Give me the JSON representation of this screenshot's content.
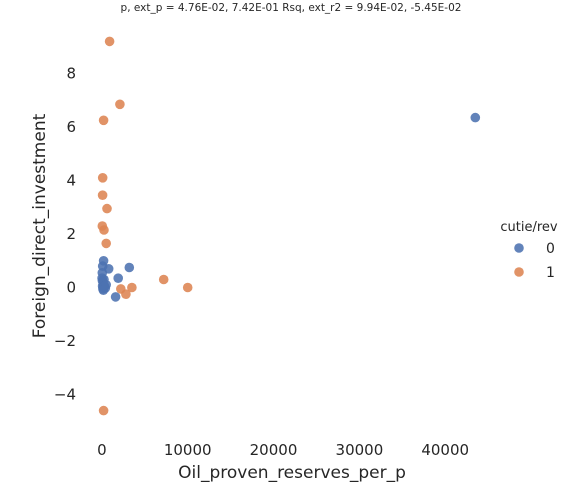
{
  "chart_data": {
    "type": "scatter",
    "title": "p, ext_p = 4.76E-02, 7.42E-01 Rsq, ext_r2 = 9.94E-02, -5.45E-02",
    "xlabel": "Oil_proven_reserves_per_p",
    "ylabel": "Foreign_direct_investment",
    "xlim": [
      -2200,
      46500
    ],
    "ylim": [
      -5.4,
      9.7
    ],
    "x_ticks": [
      0,
      10000,
      20000,
      30000,
      40000
    ],
    "x_tick_labels": [
      "0",
      "10000",
      "20000",
      "30000",
      "40000"
    ],
    "y_ticks": [
      -4,
      -2,
      0,
      2,
      4,
      6,
      8
    ],
    "y_tick_labels": [
      "−4",
      "−2",
      "0",
      "2",
      "4",
      "6",
      "8"
    ],
    "grid": false,
    "legend": {
      "title": "cutie/rev",
      "position": "right"
    },
    "series": [
      {
        "name": "0",
        "color": "#4c72b0",
        "points": [
          [
            43500,
            6.35
          ],
          [
            3200,
            0.75
          ],
          [
            800,
            0.7
          ],
          [
            1900,
            0.35
          ],
          [
            1600,
            -0.35
          ],
          [
            200,
            1.0
          ],
          [
            100,
            0.8
          ],
          [
            50,
            0.55
          ],
          [
            30,
            0.35
          ],
          [
            60,
            0.25
          ],
          [
            250,
            0.3
          ],
          [
            150,
            0.15
          ],
          [
            80,
            0.05
          ],
          [
            200,
            0.02
          ],
          [
            120,
            -0.05
          ],
          [
            400,
            -0.02
          ],
          [
            300,
            0.05
          ],
          [
            500,
            0.1
          ],
          [
            180,
            -0.1
          ]
        ]
      },
      {
        "name": "1",
        "color": "#dd8452",
        "points": [
          [
            900,
            9.2
          ],
          [
            2100,
            6.85
          ],
          [
            200,
            6.25
          ],
          [
            100,
            4.1
          ],
          [
            80,
            3.45
          ],
          [
            600,
            2.95
          ],
          [
            50,
            2.3
          ],
          [
            250,
            2.15
          ],
          [
            500,
            1.65
          ],
          [
            7200,
            0.3
          ],
          [
            10000,
            0.0
          ],
          [
            3500,
            0.0
          ],
          [
            2200,
            -0.05
          ],
          [
            2800,
            -0.25
          ],
          [
            200,
            -4.6
          ]
        ]
      }
    ]
  }
}
